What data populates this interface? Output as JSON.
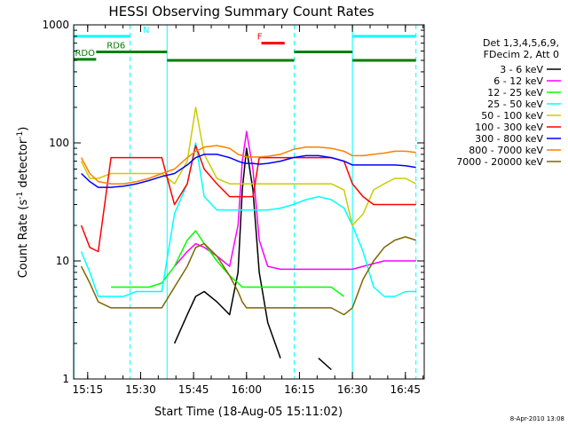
{
  "chart_data": {
    "type": "line",
    "title": "HESSI Observing Summary Count Rates",
    "xlabel": "Start Time (18-Aug-05 15:11:02)",
    "ylabel_main": "Count Rate (s",
    "ylabel_sup1": "-1",
    "ylabel_mid": " detector",
    "ylabel_sup2": "-1",
    "ylabel_end": ")",
    "ylog": true,
    "xlim": [
      15.1838,
      16.8389
    ],
    "ylim": [
      1,
      1000
    ],
    "x_ticks": [
      {
        "label": "15:15",
        "x": 15.25
      },
      {
        "label": "15:30",
        "x": 15.5
      },
      {
        "label": "15:45",
        "x": 15.75
      },
      {
        "label": "16:00",
        "x": 16.0
      },
      {
        "label": "16:15",
        "x": 16.25
      },
      {
        "label": "16:30",
        "x": 16.5
      },
      {
        "label": "16:45",
        "x": 16.75
      }
    ],
    "y_ticks": [
      {
        "label": "1",
        "y": 1
      },
      {
        "label": "10",
        "y": 10
      },
      {
        "label": "100",
        "y": 100
      },
      {
        "label": "1000",
        "y": 1000
      }
    ],
    "legend_header": [
      "Det 1,3,4,5,6,9,",
      "FDecim 2, Att 0"
    ],
    "legend_position": "right",
    "x": [
      15.185,
      15.22,
      15.26,
      15.3,
      15.36,
      15.42,
      15.48,
      15.54,
      15.6,
      15.66,
      15.72,
      15.76,
      15.8,
      15.86,
      15.92,
      15.96,
      15.98,
      16.0,
      16.03,
      16.06,
      16.1,
      16.16,
      16.22,
      16.28,
      16.34,
      16.4,
      16.46,
      16.5,
      16.55,
      16.6,
      16.65,
      16.7,
      16.75,
      16.8
    ],
    "series": [
      {
        "name": "3 - 6 keV",
        "color": "#000000",
        "values": [
          null,
          null,
          null,
          null,
          null,
          null,
          null,
          null,
          null,
          2.0,
          3.5,
          5.0,
          5.5,
          4.5,
          3.5,
          8.0,
          40.0,
          90.0,
          40.0,
          8.0,
          3.0,
          1.5,
          null,
          null,
          1.5,
          1.2,
          null,
          null,
          null,
          null,
          null,
          null,
          null,
          null
        ]
      },
      {
        "name": "6 - 12 keV",
        "color": "#ff00ff",
        "values": [
          null,
          null,
          null,
          null,
          null,
          null,
          null,
          null,
          null,
          9.0,
          12.0,
          14.0,
          13.0,
          11.0,
          9.0,
          20.0,
          70.0,
          125.0,
          60.0,
          15.0,
          9.0,
          8.5,
          8.5,
          8.5,
          8.5,
          8.5,
          8.5,
          8.5,
          9.0,
          9.5,
          10.0,
          10.0,
          10.0,
          10.0
        ]
      },
      {
        "name": "12 - 25 keV",
        "color": "#00ff00",
        "values": [
          null,
          null,
          null,
          null,
          6.0,
          6.0,
          6.0,
          6.0,
          6.5,
          9.0,
          15.0,
          18.0,
          14.0,
          10.0,
          7.5,
          6.5,
          6.0,
          6.0,
          6.0,
          6.0,
          6.0,
          6.0,
          6.0,
          6.0,
          6.0,
          6.0,
          5.0,
          null,
          null,
          null,
          null,
          null,
          null,
          null
        ]
      },
      {
        "name": "25 - 50 keV",
        "color": "#00ffff",
        "values": [
          null,
          12.0,
          8.0,
          5.0,
          5.0,
          5.0,
          5.5,
          5.5,
          5.5,
          25.0,
          45.0,
          100.0,
          35.0,
          27.0,
          27.0,
          27.0,
          27.0,
          27.0,
          27.0,
          27.0,
          27.0,
          28.0,
          30.0,
          33.0,
          35.0,
          33.0,
          28.0,
          20.0,
          12.0,
          6.0,
          5.0,
          5.0,
          5.5,
          5.5
        ]
      },
      {
        "name": "50 - 100 keV",
        "color": "#cccc00",
        "values": [
          null,
          70.0,
          50.0,
          50.0,
          55.0,
          55.0,
          55.0,
          55.0,
          55.0,
          45.0,
          70.0,
          200.0,
          80.0,
          50.0,
          45.0,
          45.0,
          45.0,
          45.0,
          45.0,
          45.0,
          45.0,
          45.0,
          45.0,
          45.0,
          45.0,
          45.0,
          40.0,
          20.0,
          25.0,
          40.0,
          45.0,
          50.0,
          50.0,
          45.0
        ]
      },
      {
        "name": "100 - 300 keV",
        "color": "#ff0000",
        "values": [
          null,
          20.0,
          13.0,
          12.0,
          75.0,
          75.0,
          75.0,
          75.0,
          75.0,
          30.0,
          45.0,
          95.0,
          60.0,
          45.0,
          35.0,
          35.0,
          35.0,
          35.0,
          35.0,
          75.0,
          75.0,
          75.0,
          75.0,
          75.0,
          75.0,
          75.0,
          70.0,
          45.0,
          35.0,
          30.0,
          30.0,
          30.0,
          30.0,
          30.0
        ]
      },
      {
        "name": "300 - 800 keV",
        "color": "#0000ff",
        "values": [
          null,
          55.0,
          47.0,
          42.0,
          42.0,
          43.0,
          45.0,
          48.0,
          52.0,
          55.0,
          65.0,
          75.0,
          80.0,
          80.0,
          75.0,
          70.0,
          68.0,
          67.0,
          67.0,
          66.0,
          67.0,
          70.0,
          75.0,
          78.0,
          78.0,
          75.0,
          70.0,
          65.0,
          65.0,
          65.0,
          65.0,
          65.0,
          64.0,
          62.0
        ]
      },
      {
        "name": "800 - 7000 keV",
        "color": "#ff8000",
        "values": [
          null,
          75.0,
          55.0,
          47.0,
          45.0,
          45.0,
          47.0,
          50.0,
          55.0,
          60.0,
          75.0,
          85.0,
          92.0,
          95.0,
          90.0,
          80.0,
          78.0,
          76.0,
          76.0,
          76.0,
          77.0,
          80.0,
          88.0,
          92.0,
          92.0,
          90.0,
          85.0,
          78.0,
          78.0,
          80.0,
          82.0,
          85.0,
          85.0,
          83.0
        ]
      },
      {
        "name": "7000 - 20000 keV",
        "color": "#7f6600",
        "values": [
          null,
          9.0,
          6.5,
          4.5,
          4.0,
          4.0,
          4.0,
          4.0,
          4.0,
          6.0,
          9.0,
          13.0,
          14.0,
          11.0,
          7.5,
          5.5,
          4.5,
          4.0,
          4.0,
          4.0,
          4.0,
          4.0,
          4.0,
          4.0,
          4.0,
          4.0,
          3.5,
          4.0,
          7.0,
          10.0,
          13.0,
          15.0,
          16.0,
          15.0
        ]
      }
    ],
    "annotations": [
      {
        "id": "N",
        "label": "N",
        "color": "#00ffff",
        "level": 800,
        "segments": [
          [
            15.185,
            15.45
          ],
          [
            16.5,
            16.8
          ]
        ],
        "label_x": 15.51
      },
      {
        "id": "F",
        "label": "F",
        "color": "#ff0000",
        "level": 700,
        "segments": [
          [
            16.07,
            16.18
          ]
        ],
        "label_x": 16.05
      },
      {
        "id": "RD0",
        "label": "RDO",
        "color": "#007f00",
        "level": 510,
        "segments": [
          [
            15.185,
            15.29
          ]
        ],
        "label_x": 15.19
      },
      {
        "id": "RD6",
        "label": "RD6",
        "color": "#007f00",
        "level": 590,
        "segments": [
          [
            15.29,
            15.625
          ],
          [
            16.225,
            16.5
          ]
        ],
        "label_x": 15.34
      },
      {
        "id": "RD-mid",
        "label": "",
        "color": "#007f00",
        "level": 500,
        "segments": [
          [
            15.625,
            16.225
          ],
          [
            16.5,
            16.8
          ]
        ],
        "label_x": null
      }
    ],
    "vlines": [
      {
        "x": 15.185,
        "color": "#00ffff",
        "style": "solid"
      },
      {
        "x": 15.45,
        "color": "#00ffff",
        "style": "dashed"
      },
      {
        "x": 15.625,
        "color": "#00ffff",
        "style": "solid"
      },
      {
        "x": 16.225,
        "color": "#00ffff",
        "style": "dashed"
      },
      {
        "x": 16.5,
        "color": "#00ffff",
        "style": "solid"
      },
      {
        "x": 16.8,
        "color": "#00ffff",
        "style": "dashed"
      }
    ]
  },
  "footer": {
    "timestamp": "8-Apr-2010 13:08"
  }
}
